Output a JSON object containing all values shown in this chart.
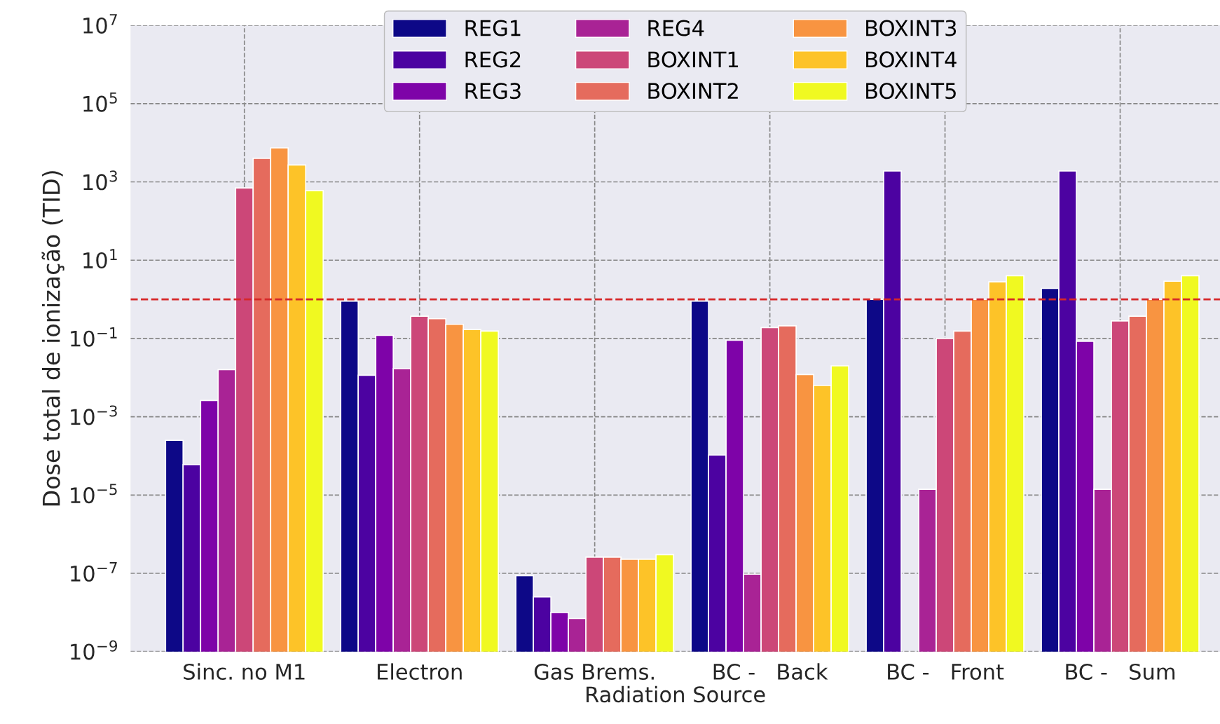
{
  "chart_data": {
    "type": "bar",
    "xlabel": "Radiation Source",
    "ylabel": "Dose total de ionização (TID)",
    "categories": [
      "Sinc. no M1",
      "Electron",
      "Gas Brems.",
      "BC -   Back",
      "BC -   Front",
      "BC -   Sum"
    ],
    "series": [
      {
        "name": "REG1",
        "color": "#0d0887",
        "values": [
          0.00025,
          0.9,
          8.7e-08,
          0.9,
          1.0,
          1.9
        ]
      },
      {
        "name": "REG2",
        "color": "#4c02a1",
        "values": [
          6e-05,
          0.0115,
          2.5e-08,
          0.000105,
          1900,
          1900
        ]
      },
      {
        "name": "REG3",
        "color": "#7e03a8",
        "values": [
          0.0026,
          0.12,
          1e-08,
          0.09,
          null,
          0.085
        ]
      },
      {
        "name": "REG4",
        "color": "#a92395",
        "values": [
          0.016,
          0.017,
          7e-09,
          9.5e-08,
          1.4e-05,
          1.4e-05
        ]
      },
      {
        "name": "BOXINT1",
        "color": "#cc4778",
        "values": [
          700,
          0.37,
          2.6e-07,
          0.19,
          0.1,
          0.28
        ]
      },
      {
        "name": "BOXINT2",
        "color": "#e56b5d",
        "values": [
          4000,
          0.32,
          2.6e-07,
          0.21,
          0.155,
          0.37
        ]
      },
      {
        "name": "BOXINT3",
        "color": "#f89441",
        "values": [
          7400,
          0.23,
          2.3e-07,
          0.012,
          1.0,
          1.0
        ]
      },
      {
        "name": "BOXINT4",
        "color": "#fdc328",
        "values": [
          2700,
          0.17,
          2.3e-07,
          0.0063,
          2.8,
          2.9
        ]
      },
      {
        "name": "BOXINT5",
        "color": "#f0f921",
        "values": [
          600,
          0.155,
          3e-07,
          0.02,
          4.0,
          4.0
        ]
      }
    ],
    "log": true,
    "ylim": [
      1e-09,
      10000000.0
    ],
    "yticks": [
      {
        "value": 1e-09,
        "label": "10$^{−9}$"
      },
      {
        "value": 1e-07,
        "label": "10$^{−7}$"
      },
      {
        "value": 1e-05,
        "label": "10$^{−5}$"
      },
      {
        "value": 0.001,
        "label": "10$^{−3}$"
      },
      {
        "value": 0.1,
        "label": "10$^{−1}$"
      },
      {
        "value": 10,
        "label": "10$^{1}$"
      },
      {
        "value": 1000,
        "label": "10$^{3}$"
      },
      {
        "value": 100000,
        "label": "10$^{5}$"
      },
      {
        "value": 10000000,
        "label": "10$^{7}$"
      }
    ],
    "ref_lines": [
      {
        "axis": "y",
        "value": 1,
        "color": "#d62728",
        "line_style": "dashed"
      }
    ],
    "grid": true,
    "legend": "top"
  }
}
